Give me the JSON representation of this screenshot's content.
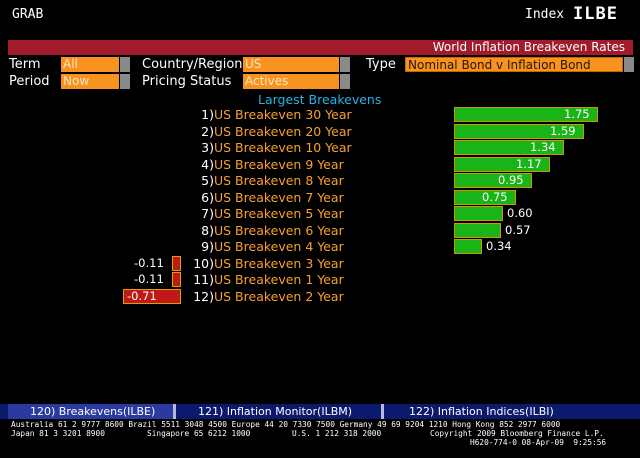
{
  "header": {
    "grab": "GRAB",
    "index_label": "Index",
    "index_code": "ILBE"
  },
  "title_bar": {
    "title": "World Inflation Breakeven Rates"
  },
  "filters": {
    "term_label": "Term",
    "term_value": "All",
    "country_label": "Country/Region",
    "country_value": "US",
    "type_label": "Type",
    "type_value": "Nominal Bond v Inflation Bond",
    "period_label": "Period",
    "period_value": "Now",
    "pricing_label": "Pricing Status",
    "pricing_value": "Actives"
  },
  "section_title": "Largest Breakevens",
  "rows": [
    {
      "num": "1)",
      "name": "US Breakeven 30 Year",
      "value": "1.75"
    },
    {
      "num": "2)",
      "name": "US Breakeven 20 Year",
      "value": "1.59"
    },
    {
      "num": "3)",
      "name": "US Breakeven 10 Year",
      "value": "1.34"
    },
    {
      "num": "4)",
      "name": "US Breakeven 9 Year",
      "value": "1.17"
    },
    {
      "num": "5)",
      "name": "US Breakeven 8 Year",
      "value": "0.95"
    },
    {
      "num": "6)",
      "name": "US Breakeven 7 Year",
      "value": "0.75"
    },
    {
      "num": "7)",
      "name": "US Breakeven 5 Year",
      "value": "0.60"
    },
    {
      "num": "8)",
      "name": "US Breakeven 6 Year",
      "value": "0.57"
    },
    {
      "num": "9)",
      "name": "US Breakeven 4 Year",
      "value": "0.34"
    },
    {
      "num": "10)",
      "name": "US Breakeven 3 Year",
      "value": "-0.11"
    },
    {
      "num": "11)",
      "name": "US Breakeven 1 Year",
      "value": "-0.11"
    },
    {
      "num": "12)",
      "name": "US Breakeven 2 Year",
      "value": "-0.71"
    }
  ],
  "colors": {
    "positive_bar": "#18b418",
    "negative_bar": "#c11818",
    "accent": "#f7931e",
    "title_strip": "#a11b2a"
  },
  "tabs": [
    {
      "label": "120)  Breakevens(ILBE)"
    },
    {
      "label": "121)  Inflation Monitor(ILBM)"
    },
    {
      "label": "122)  Inflation Indices(ILBI)"
    }
  ],
  "footer": {
    "line1": "Australia 61 2 9777 8600 Brazil 5511 3048 4500 Europe 44 20 7330 7500 Germany 49 69 9204 1210 Hong Kong 852 2977 6000",
    "line2a": "Japan 81 3 3201 8900",
    "line2b": "Singapore 65 6212 1000",
    "line2c": "U.S. 1 212 318 2000",
    "line2d": "Copyright 2009 Bloomberg Finance L.P.",
    "line3": "H620-774-0 08-Apr-09  9:25:56"
  }
}
